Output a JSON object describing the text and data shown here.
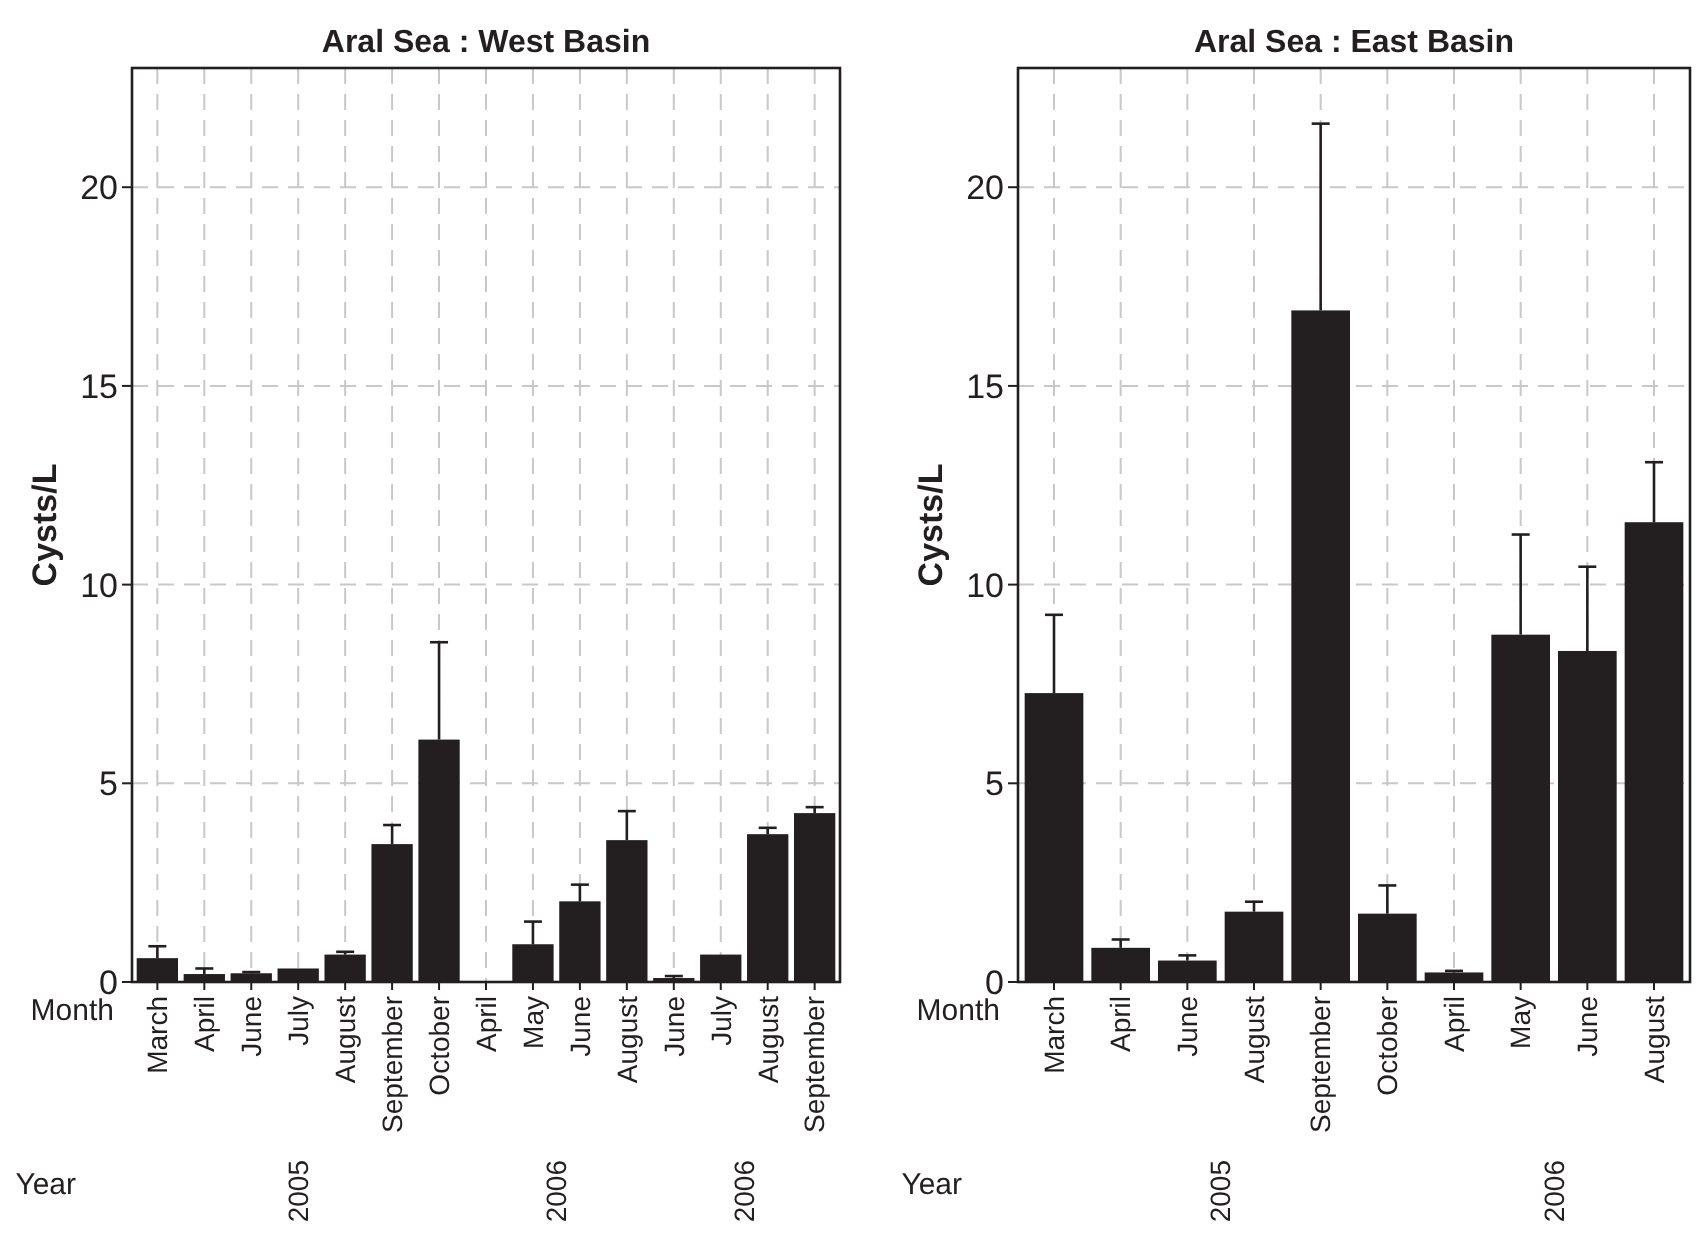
{
  "chart_data": [
    {
      "type": "bar",
      "title": "Aral Sea : West Basin",
      "ylabel": "Cysts/L",
      "xlabel": "Month",
      "categories": [
        "March",
        "April",
        "June",
        "July",
        "August",
        "September",
        "October",
        "April",
        "May",
        "June",
        "August",
        "June",
        "July",
        "August",
        "September"
      ],
      "values": [
        0.6,
        0.2,
        0.22,
        0.34,
        0.69,
        3.47,
        6.1,
        0.02,
        0.95,
        2.03,
        3.57,
        0.1,
        0.69,
        3.72,
        4.25
      ],
      "errors": [
        [
          0.6,
          0.9
        ],
        [
          0.2,
          0.34
        ],
        [
          0.22,
          0.25
        ],
        null,
        [
          0.69,
          0.76
        ],
        [
          3.47,
          3.95
        ],
        [
          6.1,
          8.55
        ],
        null,
        [
          0.95,
          1.52
        ],
        [
          2.03,
          2.45
        ],
        [
          3.57,
          4.3
        ],
        [
          0.1,
          0.15
        ],
        null,
        [
          3.72,
          3.88
        ],
        [
          4.25,
          4.4
        ]
      ],
      "color": "#231f20",
      "ylim": [
        0,
        23
      ],
      "yticks": [
        0,
        5,
        10,
        15,
        20
      ],
      "grid": true,
      "annotations": [
        "Year",
        "2005",
        "2006",
        "2006"
      ]
    },
    {
      "type": "bar",
      "title": "Aral Sea : East Basin",
      "ylabel": "Cysts/L",
      "xlabel": "Month",
      "categories": [
        "March",
        "April",
        "June",
        "August",
        "September",
        "October",
        "April",
        "May",
        "June",
        "August"
      ],
      "values": [
        7.27,
        0.86,
        0.54,
        1.77,
        16.9,
        1.72,
        0.24,
        8.74,
        8.33,
        11.57
      ],
      "errors": [
        [
          7.27,
          9.24
        ],
        [
          0.86,
          1.07
        ],
        [
          0.54,
          0.67
        ],
        [
          1.77,
          2.02
        ],
        [
          16.9,
          21.6
        ],
        [
          1.72,
          2.43
        ],
        [
          0.24,
          0.28
        ],
        [
          8.74,
          11.26
        ],
        [
          8.33,
          10.45
        ],
        [
          11.57,
          13.08
        ]
      ],
      "color": "#231f20",
      "ylim": [
        0,
        23
      ],
      "yticks": [
        0,
        5,
        10,
        15,
        20
      ],
      "grid": true,
      "annotations": [
        "Year",
        "2005",
        "2006"
      ]
    }
  ]
}
